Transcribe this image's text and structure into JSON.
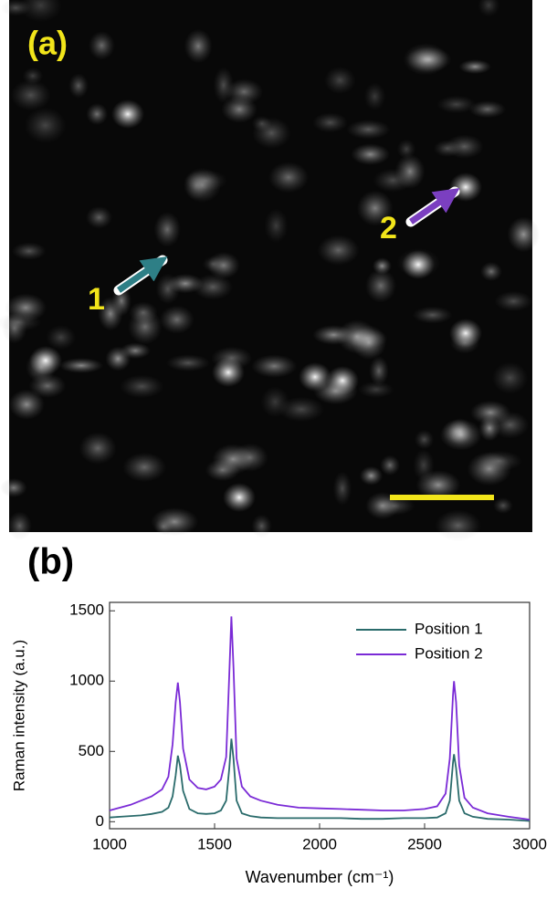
{
  "panel_a": {
    "label": "(a)",
    "markers": [
      "1",
      "2"
    ]
  },
  "chart_data": {
    "type": "line",
    "panel_label": "(b)",
    "x_label": "Wavenumber (cm⁻¹)",
    "y_label": "Raman intensity (a.u.)",
    "x": [
      1000,
      1050,
      1100,
      1150,
      1200,
      1250,
      1280,
      1300,
      1315,
      1325,
      1335,
      1350,
      1380,
      1420,
      1460,
      1500,
      1530,
      1555,
      1570,
      1580,
      1590,
      1605,
      1630,
      1670,
      1720,
      1800,
      1900,
      2000,
      2100,
      2200,
      2300,
      2400,
      2500,
      2560,
      2600,
      2620,
      2635,
      2640,
      2650,
      2665,
      2690,
      2730,
      2800,
      2900,
      3000
    ],
    "series": [
      {
        "name": "Position 1",
        "color": "#2a6b6b",
        "values": [
          30,
          35,
          40,
          45,
          55,
          70,
          100,
          180,
          330,
          470,
          400,
          220,
          90,
          60,
          55,
          60,
          80,
          150,
          380,
          590,
          450,
          150,
          60,
          40,
          30,
          25,
          25,
          25,
          25,
          20,
          20,
          25,
          25,
          30,
          60,
          150,
          420,
          480,
          380,
          150,
          60,
          35,
          20,
          15,
          5
        ]
      },
      {
        "name": "Position 2",
        "color": "#7a2ad6",
        "values": [
          80,
          100,
          120,
          150,
          180,
          230,
          320,
          550,
          850,
          990,
          850,
          520,
          300,
          240,
          230,
          250,
          300,
          460,
          1050,
          1460,
          1100,
          450,
          250,
          180,
          150,
          120,
          100,
          95,
          90,
          85,
          80,
          80,
          90,
          110,
          200,
          450,
          900,
          1000,
          850,
          400,
          170,
          100,
          60,
          35,
          15
        ]
      }
    ],
    "xlim": [
      1000,
      3000
    ],
    "ylim": [
      -50,
      1560
    ],
    "xticks": [
      1000,
      1500,
      2000,
      2500,
      3000
    ],
    "yticks": [
      0,
      500,
      1000,
      1500
    ],
    "legend": "upper right"
  }
}
